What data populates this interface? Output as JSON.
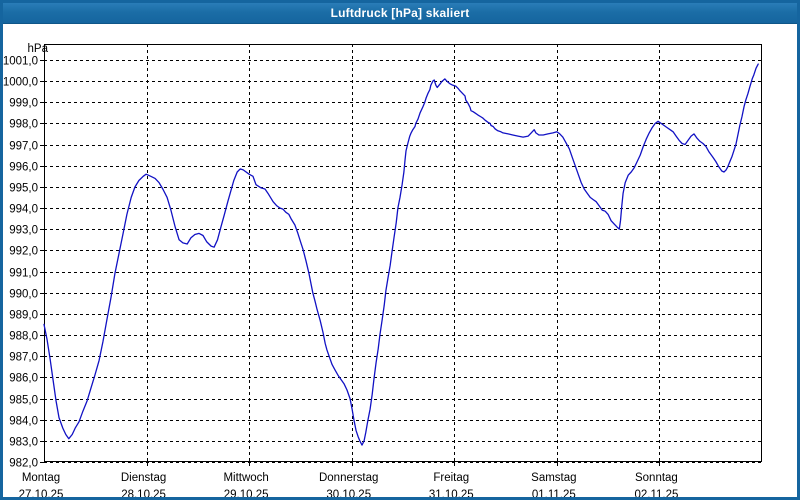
{
  "window": {
    "title": "Luftdruck [hPa] skaliert"
  },
  "colors": {
    "window_border": "#15659f",
    "titlebar": "#1b6da6",
    "title_text": "#ffffff",
    "plot_bg": "#ffffff",
    "frame": "#000000",
    "grid": "#000000",
    "line": "#1212c4",
    "label": "#000000"
  },
  "chart_data": {
    "type": "line",
    "title": "Luftdruck [hPa] skaliert",
    "y_unit_label": "hPa",
    "ylim": [
      982,
      1001.75
    ],
    "ytick_step": 1.0,
    "yticks": [
      {
        "v": 1001,
        "label": "1001,0"
      },
      {
        "v": 1000,
        "label": "1000,0"
      },
      {
        "v": 999,
        "label": "999,0"
      },
      {
        "v": 998,
        "label": "998,0"
      },
      {
        "v": 997,
        "label": "997,0"
      },
      {
        "v": 996,
        "label": "996,0"
      },
      {
        "v": 995,
        "label": "995,0"
      },
      {
        "v": 994,
        "label": "994,0"
      },
      {
        "v": 993,
        "label": "993,0"
      },
      {
        "v": 992,
        "label": "992,0"
      },
      {
        "v": 991,
        "label": "991,0"
      },
      {
        "v": 990,
        "label": "990,0"
      },
      {
        "v": 989,
        "label": "989,0"
      },
      {
        "v": 988,
        "label": "988,0"
      },
      {
        "v": 987,
        "label": "987,0"
      },
      {
        "v": 986,
        "label": "986,0"
      },
      {
        "v": 985,
        "label": "985,0"
      },
      {
        "v": 984,
        "label": "984,0"
      },
      {
        "v": 983,
        "label": "983,0"
      },
      {
        "v": 982,
        "label": "982,0"
      }
    ],
    "x_hours_span": 168,
    "x_days": [
      {
        "label": "Montag",
        "date": "27.10.25"
      },
      {
        "label": "Dienstag",
        "date": "28.10.25"
      },
      {
        "label": "Mittwoch",
        "date": "29.10.25"
      },
      {
        "label": "Donnerstag",
        "date": "30.10.25"
      },
      {
        "label": "Freitag",
        "date": "31.10.25"
      },
      {
        "label": "Samstag",
        "date": "01.11.25"
      },
      {
        "label": "Sonntag",
        "date": "02.11.25"
      }
    ],
    "grid": true,
    "legend": "none",
    "series": [
      {
        "name": "Luftdruck",
        "points": [
          [
            0,
            988.5
          ],
          [
            0.7,
            987.8
          ],
          [
            1.4,
            986.9
          ],
          [
            2.1,
            985.9
          ],
          [
            2.8,
            984.9
          ],
          [
            3.5,
            984.1
          ],
          [
            4.4,
            983.6
          ],
          [
            5.1,
            983.3
          ],
          [
            5.8,
            983.1
          ],
          [
            6.6,
            983.3
          ],
          [
            7.3,
            983.6
          ],
          [
            8.2,
            983.9
          ],
          [
            9.1,
            984.4
          ],
          [
            10.1,
            984.9
          ],
          [
            11,
            985.5
          ],
          [
            11.9,
            986.1
          ],
          [
            12.9,
            986.8
          ],
          [
            13.8,
            987.7
          ],
          [
            14.7,
            988.7
          ],
          [
            15.7,
            989.8
          ],
          [
            16.6,
            990.9
          ],
          [
            17.6,
            991.9
          ],
          [
            18.5,
            992.8
          ],
          [
            19.4,
            993.7
          ],
          [
            20.4,
            994.5
          ],
          [
            21.3,
            995.0
          ],
          [
            22.2,
            995.3
          ],
          [
            23.2,
            995.5
          ],
          [
            23.9,
            995.6
          ],
          [
            25,
            995.5
          ],
          [
            26,
            995.4
          ],
          [
            26.9,
            995.2
          ],
          [
            27.8,
            994.9
          ],
          [
            28.8,
            994.5
          ],
          [
            29.7,
            993.9
          ],
          [
            30.7,
            993.1
          ],
          [
            31.6,
            992.5
          ],
          [
            32.5,
            992.35
          ],
          [
            33.5,
            992.3
          ],
          [
            34.4,
            992.6
          ],
          [
            35.3,
            992.75
          ],
          [
            36.3,
            992.8
          ],
          [
            37.2,
            992.7
          ],
          [
            38.1,
            992.4
          ],
          [
            39.1,
            992.2
          ],
          [
            39.8,
            992.15
          ],
          [
            40.6,
            992.5
          ],
          [
            41.4,
            993.1
          ],
          [
            42.2,
            993.7
          ],
          [
            43,
            994.3
          ],
          [
            43.7,
            994.8
          ],
          [
            44.4,
            995.3
          ],
          [
            45.2,
            995.7
          ],
          [
            45.9,
            995.85
          ],
          [
            46.6,
            995.8
          ],
          [
            48,
            995.6
          ],
          [
            48.9,
            995.5
          ],
          [
            49.6,
            995.1
          ],
          [
            50.8,
            994.95
          ],
          [
            51.7,
            994.9
          ],
          [
            52.4,
            994.7
          ],
          [
            53.6,
            994.3
          ],
          [
            54.5,
            994.1
          ],
          [
            55.2,
            994.0
          ],
          [
            55.9,
            993.95
          ],
          [
            56.6,
            993.8
          ],
          [
            57.3,
            993.7
          ],
          [
            57.8,
            993.5
          ],
          [
            58.7,
            993.2
          ],
          [
            59.4,
            992.8
          ],
          [
            60.1,
            992.35
          ],
          [
            60.6,
            992.05
          ],
          [
            61.3,
            991.5
          ],
          [
            62,
            990.9
          ],
          [
            62.5,
            990.4
          ],
          [
            62.9,
            990.0
          ],
          [
            63.4,
            989.6
          ],
          [
            63.9,
            989.2
          ],
          [
            64.6,
            988.7
          ],
          [
            65.3,
            988.1
          ],
          [
            65.8,
            987.6
          ],
          [
            66.2,
            987.3
          ],
          [
            66.7,
            987.0
          ],
          [
            67.4,
            986.6
          ],
          [
            68.1,
            986.35
          ],
          [
            68.8,
            986.1
          ],
          [
            69.5,
            985.9
          ],
          [
            70.2,
            985.7
          ],
          [
            70.9,
            985.4
          ],
          [
            71.6,
            985.0
          ],
          [
            72.1,
            984.5
          ],
          [
            72.5,
            984.0
          ],
          [
            73,
            983.5
          ],
          [
            73.5,
            983.2
          ],
          [
            73.9,
            983.0
          ],
          [
            74.4,
            982.8
          ],
          [
            74.9,
            983.0
          ],
          [
            75.3,
            983.4
          ],
          [
            75.8,
            984.0
          ],
          [
            76.3,
            984.5
          ],
          [
            76.8,
            985.2
          ],
          [
            77.2,
            985.9
          ],
          [
            77.7,
            986.7
          ],
          [
            78.2,
            987.35
          ],
          [
            78.6,
            988.0
          ],
          [
            79.1,
            988.7
          ],
          [
            79.6,
            989.4
          ],
          [
            80,
            990.1
          ],
          [
            80.5,
            990.7
          ],
          [
            81,
            991.3
          ],
          [
            81.4,
            991.9
          ],
          [
            81.9,
            992.6
          ],
          [
            82.4,
            993.3
          ],
          [
            82.8,
            994.0
          ],
          [
            83.3,
            994.5
          ],
          [
            83.8,
            995.1
          ],
          [
            84.2,
            995.7
          ],
          [
            84.5,
            996.3
          ],
          [
            84.7,
            996.7
          ],
          [
            85.2,
            997.1
          ],
          [
            85.6,
            997.4
          ],
          [
            85.9,
            997.55
          ],
          [
            86.3,
            997.7
          ],
          [
            86.8,
            997.85
          ],
          [
            87,
            998.0
          ],
          [
            87.5,
            998.2
          ],
          [
            88,
            998.5
          ],
          [
            88.7,
            998.8
          ],
          [
            89.1,
            999.0
          ],
          [
            89.4,
            999.2
          ],
          [
            89.8,
            999.4
          ],
          [
            90.3,
            999.6
          ],
          [
            90.5,
            999.8
          ],
          [
            91,
            1000.0
          ],
          [
            91.3,
            1000.05
          ],
          [
            91.7,
            999.8
          ],
          [
            92,
            999.7
          ],
          [
            92.7,
            999.87
          ],
          [
            93.1,
            999.98
          ],
          [
            93.8,
            1000.1
          ],
          [
            94.1,
            1000.03
          ],
          [
            94.5,
            999.95
          ],
          [
            95,
            999.87
          ],
          [
            95.7,
            999.8
          ],
          [
            96.4,
            999.75
          ],
          [
            96.9,
            999.65
          ],
          [
            97.3,
            999.55
          ],
          [
            98,
            999.4
          ],
          [
            98.5,
            999.3
          ],
          [
            98.7,
            999.1
          ],
          [
            99.2,
            998.95
          ],
          [
            99.7,
            998.75
          ],
          [
            99.9,
            998.6
          ],
          [
            100.4,
            998.55
          ],
          [
            100.8,
            998.5
          ],
          [
            101.5,
            998.4
          ],
          [
            102.3,
            998.3
          ],
          [
            102.7,
            998.25
          ],
          [
            103.2,
            998.15
          ],
          [
            103.9,
            998.05
          ],
          [
            104.4,
            998.0
          ],
          [
            104.6,
            997.9
          ],
          [
            105.1,
            997.85
          ],
          [
            105.5,
            997.75
          ],
          [
            105.8,
            997.7
          ],
          [
            106.2,
            997.65
          ],
          [
            106.9,
            997.6
          ],
          [
            107.4,
            997.55
          ],
          [
            108.6,
            997.5
          ],
          [
            109.7,
            997.45
          ],
          [
            110.9,
            997.4
          ],
          [
            112.1,
            997.35
          ],
          [
            113.3,
            997.4
          ],
          [
            114,
            997.55
          ],
          [
            114.7,
            997.7
          ],
          [
            115.1,
            997.55
          ],
          [
            115.8,
            997.45
          ],
          [
            116.8,
            997.45
          ],
          [
            117.9,
            997.5
          ],
          [
            119.1,
            997.55
          ],
          [
            120,
            997.6
          ],
          [
            120.7,
            997.5
          ],
          [
            121.4,
            997.35
          ],
          [
            122.1,
            997.1
          ],
          [
            122.9,
            996.8
          ],
          [
            123.6,
            996.4
          ],
          [
            124.3,
            996.0
          ],
          [
            125,
            995.6
          ],
          [
            125.7,
            995.2
          ],
          [
            126.4,
            994.9
          ],
          [
            127.1,
            994.7
          ],
          [
            127.8,
            994.5
          ],
          [
            128.5,
            994.4
          ],
          [
            129.2,
            994.3
          ],
          [
            129.9,
            994.1
          ],
          [
            130.6,
            993.9
          ],
          [
            131.3,
            993.85
          ],
          [
            132,
            993.7
          ],
          [
            132.7,
            993.4
          ],
          [
            133.4,
            993.25
          ],
          [
            134.1,
            993.1
          ],
          [
            134.6,
            993.0
          ],
          [
            134.9,
            993.4
          ],
          [
            135.2,
            994.1
          ],
          [
            135.5,
            994.7
          ],
          [
            136,
            995.2
          ],
          [
            136.7,
            995.55
          ],
          [
            137.4,
            995.7
          ],
          [
            138.1,
            995.9
          ],
          [
            138.8,
            996.2
          ],
          [
            139.5,
            996.5
          ],
          [
            140.2,
            996.9
          ],
          [
            140.9,
            997.25
          ],
          [
            141.6,
            997.55
          ],
          [
            142.3,
            997.8
          ],
          [
            143,
            998.0
          ],
          [
            143.7,
            998.1
          ],
          [
            144.4,
            998.0
          ],
          [
            145.1,
            997.9
          ],
          [
            145.8,
            997.8
          ],
          [
            146.5,
            997.7
          ],
          [
            147.2,
            997.6
          ],
          [
            147.9,
            997.4
          ],
          [
            148.6,
            997.2
          ],
          [
            149.3,
            997.05
          ],
          [
            150,
            997.0
          ],
          [
            150.7,
            997.2
          ],
          [
            151.4,
            997.4
          ],
          [
            152.1,
            997.5
          ],
          [
            152.8,
            997.3
          ],
          [
            153.5,
            997.15
          ],
          [
            154.2,
            997.05
          ],
          [
            154.9,
            996.9
          ],
          [
            155.6,
            996.65
          ],
          [
            156.5,
            996.4
          ],
          [
            157.2,
            996.2
          ],
          [
            157.9,
            995.95
          ],
          [
            158.6,
            995.75
          ],
          [
            159.1,
            995.7
          ],
          [
            159.6,
            995.8
          ],
          [
            160,
            995.95
          ],
          [
            160.5,
            996.2
          ],
          [
            161,
            996.45
          ],
          [
            161.4,
            996.7
          ],
          [
            161.9,
            997.0
          ],
          [
            162.4,
            997.5
          ],
          [
            162.8,
            997.9
          ],
          [
            163.3,
            998.3
          ],
          [
            163.8,
            998.8
          ],
          [
            164.2,
            999.1
          ],
          [
            164.7,
            999.4
          ],
          [
            165.2,
            999.75
          ],
          [
            165.7,
            1000.1
          ],
          [
            166.1,
            1000.3
          ],
          [
            166.6,
            1000.6
          ],
          [
            167.1,
            1000.8
          ]
        ]
      }
    ]
  }
}
